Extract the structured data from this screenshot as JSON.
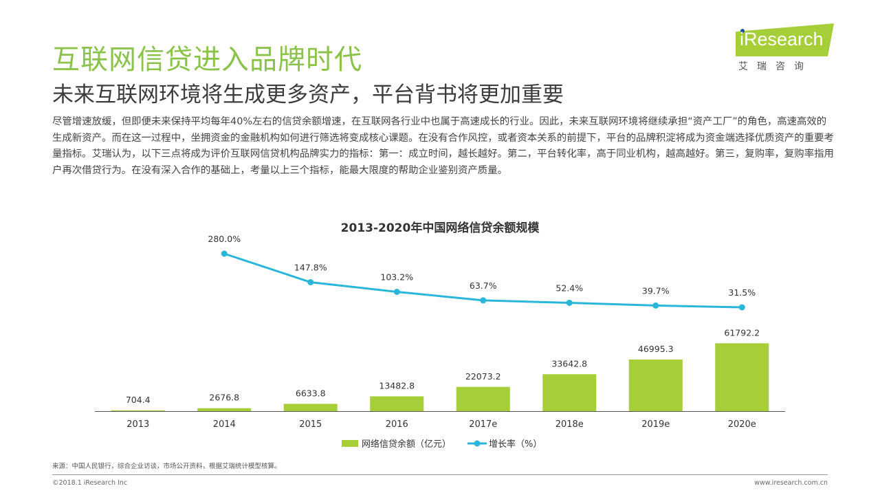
{
  "header": {
    "title": "互联网信贷进入品牌时代",
    "subtitle": "未来互联网环境将生成更多资产，平台背书将更加重要"
  },
  "logo": {
    "brand": "iResearch",
    "cn": "艾瑞咨询",
    "colors": {
      "banner": "#a6ce39",
      "dot": "#1f4e9c"
    }
  },
  "body": {
    "text": "尽管增速放缓，但即便未来保持平均每年40%左右的信贷余额增速，在互联网各行业中也属于高速成长的行业。因此，未来互联网环境将继续承担“资产工厂”的角色，高速高效的生成新资产。而在这一过程中，坐拥资金的金融机构如何进行筛选将变成核心课题。在没有合作风控，或者资本关系的前提下，平台的品牌积淀将成为资金端选择优质资产的重要考量指标。艾瑞认为，以下三点将成为评价互联网信贷机构品牌实力的指标：第一：成立时间，越长越好。第二，平台转化率，高于同业机构，越高越好。第三，复购率，复购率指用户再次借贷行为。在没有深入合作的基础上，考量以上三个指标，能最大限度的帮助企业鉴别资产质量。"
  },
  "chart_data": {
    "type": "bar",
    "title": "2013-2020年中国网络信贷余额规模",
    "categories": [
      "2013",
      "2014",
      "2015",
      "2016",
      "2017e",
      "2018e",
      "2019e",
      "2020e"
    ],
    "series": [
      {
        "name": "网络信贷余额（亿元）",
        "type": "bar",
        "values": [
          704.4,
          2676.8,
          6633.8,
          13482.8,
          22073.2,
          33642.8,
          46995.3,
          61792.2
        ],
        "labels": [
          "704.4",
          "2676.8",
          "6633.8",
          "13482.8",
          "22073.2",
          "33642.8",
          "46995.3",
          "61792.2"
        ],
        "color": "#a6ce39"
      },
      {
        "name": "增长率（%）",
        "type": "line",
        "x": [
          "2014",
          "2015",
          "2016",
          "2017e",
          "2018e",
          "2019e",
          "2020e"
        ],
        "values": [
          280.0,
          147.8,
          103.2,
          63.7,
          52.4,
          39.7,
          31.5
        ],
        "labels": [
          "280.0%",
          "147.8%",
          "103.2%",
          "63.7%",
          "52.4%",
          "39.7%",
          "31.5%"
        ],
        "color": "#29b6d8"
      }
    ],
    "legend": "bottom-center",
    "grid": false
  },
  "footer": {
    "source": "来源：中国人民银行，综合企业访谈，市场公开资料，根据艾瑞统计模型核算。",
    "copyright": "©2018.1 iResearch Inc",
    "url": "www.iresearch.com.cn"
  }
}
